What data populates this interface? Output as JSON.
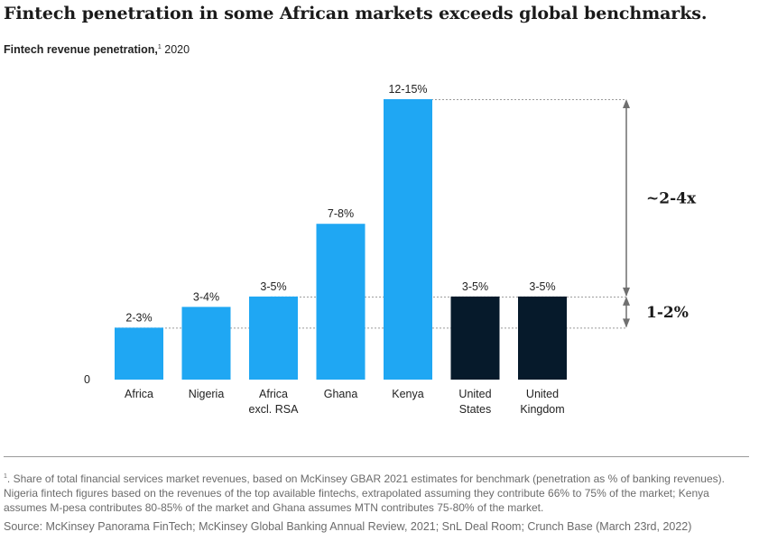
{
  "header": {
    "title": "Fintech penetration in some African markets exceeds global benchmarks.",
    "subtitle_main": "Fintech revenue penetration,",
    "subtitle_note": "1",
    "subtitle_year": "2020"
  },
  "chart_data": {
    "type": "bar",
    "title": "Fintech penetration in some African markets exceeds global benchmarks.",
    "ylabel": "Fintech revenue penetration, 2020",
    "y_zero_label": "0",
    "ylim": [
      0,
      13.5
    ],
    "bars": [
      {
        "category": "Africa",
        "label": "2-3%",
        "value": 2.5,
        "color": "#1fa7f3"
      },
      {
        "category": "Nigeria",
        "label": "3-4%",
        "value": 3.5,
        "color": "#1fa7f3"
      },
      {
        "category": "Africa excl. RSA",
        "label": "3-5%",
        "value": 4.0,
        "color": "#1fa7f3"
      },
      {
        "category": "Ghana",
        "label": "7-8%",
        "value": 7.5,
        "color": "#1fa7f3"
      },
      {
        "category": "Kenya",
        "label": "12-15%",
        "value": 13.5,
        "color": "#1fa7f3"
      },
      {
        "category": "United States",
        "label": "3-5%",
        "value": 4.0,
        "color": "#061a2b"
      },
      {
        "category": "United Kingdom",
        "label": "3-5%",
        "value": 4.0,
        "color": "#061a2b"
      }
    ],
    "category_lines": [
      [
        "Africa"
      ],
      [
        "Nigeria"
      ],
      [
        "Africa",
        "excl. RSA"
      ],
      [
        "Ghana"
      ],
      [
        "Kenya"
      ],
      [
        "United",
        "States"
      ],
      [
        "United",
        "Kingdom"
      ]
    ],
    "reference_lines": [
      {
        "value": 2.5
      },
      {
        "value": 4.0
      },
      {
        "value": 13.5
      }
    ],
    "annotations": [
      {
        "text": "~2-4x",
        "from": 4.0,
        "to": 13.5
      },
      {
        "text": "1-2%",
        "from": 2.5,
        "to": 4.0
      }
    ]
  },
  "footnote": {
    "marker": "1",
    "text": "Share of total financial services market revenues, based on McKinsey GBAR 2021 estimates for benchmark (penetration as % of banking revenues). Nigeria fintech figures based on the revenues of the top available fintechs, extrapolated assuming they contribute 66% to 75% of the market; Kenya assumes M-pesa contributes 80-85% of the market and Ghana assumes MTN contributes 75-80% of the market."
  },
  "source": "Source: McKinsey Panorama FinTech; McKinsey Global Banking Annual Review, 2021; SnL Deal Room; Crunch Base (March 23rd, 2022)",
  "colors": {
    "africa_bar": "#1fa7f3",
    "benchmark_bar": "#061a2b",
    "ref_line": "#9a9a9a"
  }
}
